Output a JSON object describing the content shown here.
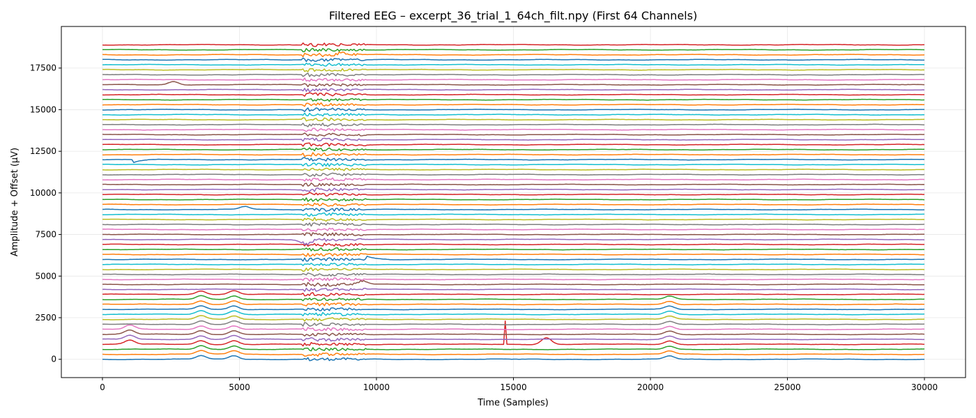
{
  "chart_data": {
    "type": "line",
    "title": "Filtered EEG – excerpt_36_trial_1_64ch_filt.npy (First 64 Channels)",
    "xlabel": "Time (Samples)",
    "ylabel": "Amplitude + Offset (µV)",
    "xlim": [
      -1500,
      31500
    ],
    "ylim": [
      -1100,
      20000
    ],
    "x_ticks": [
      0,
      5000,
      10000,
      15000,
      20000,
      25000,
      30000
    ],
    "y_ticks": [
      0,
      2500,
      5000,
      7500,
      10000,
      12500,
      15000,
      17500
    ],
    "grid": true,
    "n_channels": 64,
    "n_samples": 30000,
    "channel_offset": 300,
    "colors": [
      "#1f77b4",
      "#ff7f0e",
      "#2ca02c",
      "#d62728",
      "#9467bd",
      "#8c564b",
      "#e377c2",
      "#7f7f7f",
      "#bcbd22",
      "#17becf"
    ],
    "events": [
      {
        "channels": [
          3
        ],
        "x": 14700,
        "amplitude": 1400,
        "shape": "spike"
      },
      {
        "channels": [
          3
        ],
        "x": 16200,
        "amplitude": 400,
        "shape": "bump"
      },
      {
        "channels": [
          0,
          1,
          2,
          3,
          4,
          5,
          6,
          7,
          8,
          9,
          10,
          11,
          12,
          13
        ],
        "x": 3600,
        "amplitude": 220,
        "shape": "bump"
      },
      {
        "channels": [
          0,
          1,
          2,
          3,
          4,
          5,
          6,
          7,
          8,
          9,
          10,
          11,
          12,
          13
        ],
        "x": 4800,
        "amplitude": 220,
        "shape": "bump"
      },
      {
        "channels": [
          0,
          1,
          2,
          3,
          4,
          5,
          6,
          7,
          8,
          9,
          10,
          11,
          12
        ],
        "x": 20700,
        "amplitude": 200,
        "shape": "bump"
      },
      {
        "channels": [
          3,
          4,
          5,
          6
        ],
        "x": 1000,
        "amplitude": 250,
        "shape": "bump"
      },
      {
        "channels": [
          15
        ],
        "x": 9500,
        "amplitude": 200,
        "shape": "bump"
      },
      {
        "channels": [
          20
        ],
        "x": 9600,
        "amplitude": 250,
        "shape": "step"
      },
      {
        "channels": [
          24
        ],
        "x": 7400,
        "amplitude": -250,
        "shape": "bump"
      },
      {
        "channels": [
          30
        ],
        "x": 5200,
        "amplitude": 180,
        "shape": "bump"
      },
      {
        "channels": [
          40
        ],
        "x": 1100,
        "amplitude": -200,
        "shape": "step"
      },
      {
        "channels": [
          55
        ],
        "x": 2600,
        "amplitude": 200,
        "shape": "bump"
      },
      {
        "channels": [
          61
        ],
        "x": 8600,
        "amplitude": 150,
        "shape": "step"
      }
    ],
    "noise_bursts": [
      {
        "x_start": 7300,
        "x_end": 9600,
        "amplitude": 120
      }
    ]
  }
}
